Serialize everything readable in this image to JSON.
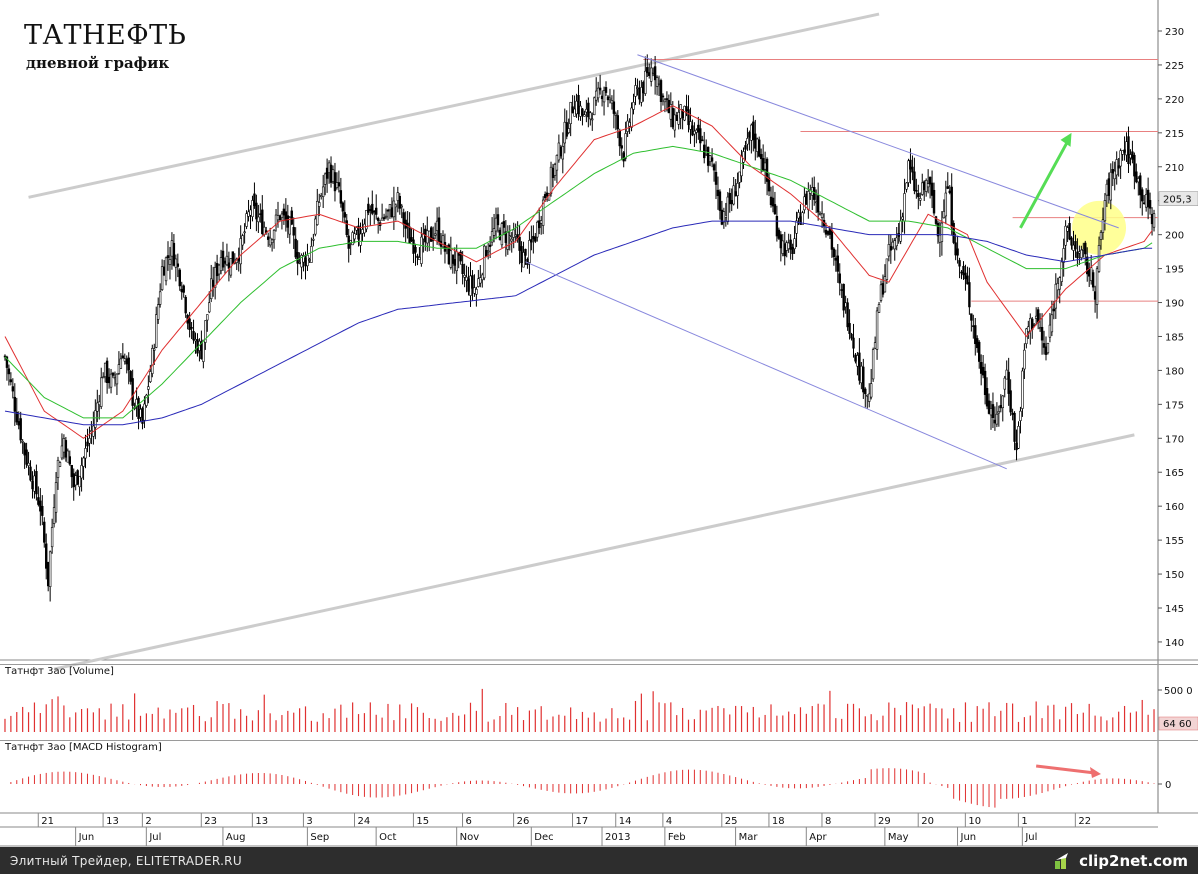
{
  "title": "ТАТНЕФТЬ",
  "subtitle": "дневной график",
  "footer": {
    "text": "Элитный Трейдер, ELITETRADER.RU",
    "logo_text": "clip2net.com"
  },
  "chart_data": [
    {
      "type": "candlestick",
      "name": "price",
      "yticks": [
        140,
        145,
        150,
        155,
        160,
        165,
        170,
        175,
        180,
        185,
        190,
        195,
        200,
        205,
        210,
        215,
        220,
        225,
        230
      ],
      "ylim": [
        136,
        233
      ],
      "last_price_label": "205,3",
      "last_price": 205.3,
      "close_keypoints": [
        [
          0,
          182
        ],
        [
          5,
          175
        ],
        [
          10,
          168
        ],
        [
          18,
          160
        ],
        [
          22,
          149
        ],
        [
          26,
          165
        ],
        [
          30,
          170
        ],
        [
          35,
          163
        ],
        [
          40,
          167
        ],
        [
          45,
          172
        ],
        [
          50,
          180
        ],
        [
          55,
          178
        ],
        [
          60,
          183
        ],
        [
          65,
          176
        ],
        [
          70,
          172
        ],
        [
          75,
          182
        ],
        [
          80,
          195
        ],
        [
          85,
          198
        ],
        [
          90,
          193
        ],
        [
          95,
          185
        ],
        [
          100,
          183
        ],
        [
          105,
          192
        ],
        [
          110,
          197
        ],
        [
          115,
          196
        ],
        [
          120,
          198
        ],
        [
          125,
          204
        ],
        [
          130,
          202
        ],
        [
          135,
          200
        ],
        [
          140,
          203
        ],
        [
          145,
          201
        ],
        [
          150,
          196
        ],
        [
          155,
          197
        ],
        [
          160,
          205
        ],
        [
          165,
          210
        ],
        [
          170,
          206
        ],
        [
          175,
          198
        ],
        [
          180,
          200
        ],
        [
          185,
          204
        ],
        [
          190,
          202
        ],
        [
          195,
          203
        ],
        [
          200,
          205
        ],
        [
          205,
          200
        ],
        [
          210,
          198
        ],
        [
          215,
          199
        ],
        [
          220,
          201
        ],
        [
          225,
          197
        ],
        [
          230,
          196
        ],
        [
          235,
          193
        ],
        [
          240,
          192
        ],
        [
          245,
          198
        ],
        [
          250,
          201
        ],
        [
          255,
          200
        ],
        [
          260,
          199
        ],
        [
          265,
          196
        ],
        [
          270,
          200
        ],
        [
          275,
          206
        ],
        [
          280,
          210
        ],
        [
          285,
          215
        ],
        [
          290,
          220
        ],
        [
          295,
          217
        ],
        [
          300,
          219
        ],
        [
          305,
          222
        ],
        [
          310,
          218
        ],
        [
          315,
          212
        ],
        [
          320,
          220
        ],
        [
          325,
          222
        ],
        [
          330,
          225
        ],
        [
          335,
          220
        ],
        [
          340,
          217
        ],
        [
          345,
          218
        ],
        [
          350,
          215
        ],
        [
          355,
          213
        ],
        [
          360,
          210
        ],
        [
          365,
          203
        ],
        [
          370,
          205
        ],
        [
          375,
          210
        ],
        [
          380,
          215
        ],
        [
          385,
          212
        ],
        [
          390,
          205
        ],
        [
          395,
          199
        ],
        [
          400,
          197
        ],
        [
          405,
          203
        ],
        [
          410,
          207
        ],
        [
          415,
          204
        ],
        [
          420,
          200
        ],
        [
          425,
          192
        ],
        [
          430,
          187
        ],
        [
          435,
          180
        ],
        [
          440,
          176
        ],
        [
          445,
          190
        ],
        [
          450,
          197
        ],
        [
          455,
          200
        ],
        [
          460,
          210
        ],
        [
          465,
          205
        ],
        [
          470,
          208
        ],
        [
          475,
          200
        ],
        [
          480,
          207
        ],
        [
          485,
          196
        ],
        [
          490,
          192
        ],
        [
          495,
          183
        ],
        [
          500,
          176
        ],
        [
          505,
          172
        ],
        [
          510,
          180
        ],
        [
          515,
          168
        ],
        [
          520,
          186
        ],
        [
          525,
          188
        ],
        [
          530,
          182
        ],
        [
          535,
          192
        ],
        [
          540,
          200
        ],
        [
          545,
          198
        ],
        [
          550,
          196
        ],
        [
          555,
          192
        ],
        [
          560,
          205
        ],
        [
          565,
          210
        ],
        [
          570,
          213
        ],
        [
          575,
          210
        ],
        [
          580,
          205
        ],
        [
          582,
          204
        ],
        [
          585,
          202
        ]
      ],
      "moving_averages": [
        {
          "name": "MA short",
          "color": "#e03030",
          "keypoints": [
            [
              0,
              185
            ],
            [
              20,
              174
            ],
            [
              40,
              170
            ],
            [
              60,
              174
            ],
            [
              80,
              183
            ],
            [
              100,
              190
            ],
            [
              120,
              197
            ],
            [
              140,
              202
            ],
            [
              160,
              203
            ],
            [
              180,
              201
            ],
            [
              200,
              202
            ],
            [
              220,
              199
            ],
            [
              240,
              196
            ],
            [
              260,
              199
            ],
            [
              280,
              207
            ],
            [
              300,
              214
            ],
            [
              320,
              216
            ],
            [
              340,
              219
            ],
            [
              360,
              216
            ],
            [
              380,
              210
            ],
            [
              400,
              206
            ],
            [
              420,
              201
            ],
            [
              440,
              194
            ],
            [
              450,
              193
            ],
            [
              470,
              203
            ],
            [
              490,
              200
            ],
            [
              500,
              193
            ],
            [
              520,
              185
            ],
            [
              540,
              192
            ],
            [
              560,
              197
            ],
            [
              580,
              199
            ],
            [
              585,
              201
            ]
          ]
        },
        {
          "name": "MA mid",
          "color": "#2fbf2f",
          "keypoints": [
            [
              0,
              182
            ],
            [
              20,
              176
            ],
            [
              40,
              173
            ],
            [
              60,
              173
            ],
            [
              80,
              178
            ],
            [
              100,
              184
            ],
            [
              120,
              190
            ],
            [
              140,
              195
            ],
            [
              160,
              198
            ],
            [
              180,
              199
            ],
            [
              200,
              199
            ],
            [
              220,
              198
            ],
            [
              240,
              198
            ],
            [
              260,
              201
            ],
            [
              280,
              205
            ],
            [
              300,
              209
            ],
            [
              320,
              212
            ],
            [
              340,
              213
            ],
            [
              360,
              212
            ],
            [
              380,
              210
            ],
            [
              400,
              208
            ],
            [
              420,
              205
            ],
            [
              440,
              202
            ],
            [
              460,
              202
            ],
            [
              480,
              201
            ],
            [
              500,
              198
            ],
            [
              520,
              195
            ],
            [
              540,
              195
            ],
            [
              560,
              197
            ],
            [
              580,
              198
            ],
            [
              585,
              199
            ]
          ]
        },
        {
          "name": "MA long",
          "color": "#2a2ab8",
          "keypoints": [
            [
              0,
              174
            ],
            [
              20,
              173
            ],
            [
              40,
              172
            ],
            [
              60,
              172
            ],
            [
              80,
              173
            ],
            [
              100,
              175
            ],
            [
              120,
              178
            ],
            [
              140,
              181
            ],
            [
              160,
              184
            ],
            [
              180,
              187
            ],
            [
              200,
              189
            ],
            [
              230,
              190
            ],
            [
              260,
              191
            ],
            [
              280,
              194
            ],
            [
              300,
              197
            ],
            [
              320,
              199
            ],
            [
              340,
              201
            ],
            [
              360,
              202
            ],
            [
              380,
              202
            ],
            [
              400,
              202
            ],
            [
              420,
              201
            ],
            [
              440,
              200
            ],
            [
              460,
              200
            ],
            [
              480,
              200
            ],
            [
              500,
              199
            ],
            [
              520,
              197
            ],
            [
              540,
              196
            ],
            [
              560,
              197
            ],
            [
              580,
              198
            ],
            [
              585,
              198
            ]
          ]
        }
      ],
      "annotations": {
        "upper_channel_line": {
          "from": [
            12,
            205.5
          ],
          "to": [
            445,
            232.5
          ],
          "color": "#cccccc"
        },
        "lower_channel_line": {
          "from": [
            25,
            136
          ],
          "to": [
            575,
            170.5
          ],
          "color": "#cccccc"
        },
        "downtrend_top_line": {
          "from": [
            322,
            226.5
          ],
          "to": [
            567,
            201
          ],
          "color": "#8888dd"
        },
        "downtrend_bottom_line": {
          "from": [
            265,
            196
          ],
          "to": [
            510,
            165.5
          ],
          "color": "#8888dd"
        },
        "horizontal_levels": [
          {
            "value": 225.8,
            "from": 325,
            "color": "#e88080"
          },
          {
            "value": 215.2,
            "from": 405,
            "color": "#e88080"
          },
          {
            "value": 202.5,
            "from": 513,
            "color": "#e88080"
          },
          {
            "value": 190.2,
            "from": 492,
            "color": "#e88080"
          }
        ],
        "green_arrow": {
          "from": [
            517,
            201
          ],
          "to": [
            543,
            215
          ],
          "color": "#55dd55"
        },
        "highlight_circle": {
          "center": [
            557,
            201
          ],
          "color": "#ffff88"
        }
      }
    },
    {
      "type": "bar",
      "name": "Татнфт 3ао [Volume]",
      "yticks_labels": [
        "500 0",
        "64 60"
      ],
      "color": "#e03030"
    },
    {
      "type": "bar",
      "name": "Татнфт 3ао [MACD Histogram]",
      "yticks": [
        0
      ],
      "color": "#e03030",
      "annotation_arrow_color": "#ee7070"
    }
  ],
  "x_axis": {
    "day_labels": [
      {
        "label": "21",
        "bar": 20
      },
      {
        "label": "13",
        "bar": 53
      },
      {
        "label": "2",
        "bar": 73
      },
      {
        "label": "23",
        "bar": 103
      },
      {
        "label": "13",
        "bar": 129
      },
      {
        "label": "3",
        "bar": 155
      },
      {
        "label": "24",
        "bar": 181
      },
      {
        "label": "15",
        "bar": 211
      },
      {
        "label": "6",
        "bar": 236
      },
      {
        "label": "26",
        "bar": 262
      },
      {
        "label": "17",
        "bar": 292
      },
      {
        "label": "14",
        "bar": 314
      },
      {
        "label": "4",
        "bar": 338
      },
      {
        "label": "25",
        "bar": 368
      },
      {
        "label": "18",
        "bar": 392
      },
      {
        "label": "8",
        "bar": 419
      },
      {
        "label": "29",
        "bar": 446
      },
      {
        "label": "20",
        "bar": 468
      },
      {
        "label": "10",
        "bar": 492
      },
      {
        "label": "1",
        "bar": 519
      },
      {
        "label": "22",
        "bar": 548
      }
    ],
    "month_labels": [
      {
        "label": "Jun",
        "bar": 38
      },
      {
        "label": "Jul",
        "bar": 74
      },
      {
        "label": "Aug",
        "bar": 113
      },
      {
        "label": "Sep",
        "bar": 156
      },
      {
        "label": "Oct",
        "bar": 191
      },
      {
        "label": "Nov",
        "bar": 232
      },
      {
        "label": "Dec",
        "bar": 270
      },
      {
        "label": "2013",
        "bar": 306
      },
      {
        "label": "Feb",
        "bar": 338
      },
      {
        "label": "Mar",
        "bar": 374
      },
      {
        "label": "Apr",
        "bar": 410
      },
      {
        "label": "May",
        "bar": 450
      },
      {
        "label": "Jun",
        "bar": 487
      },
      {
        "label": "Jul",
        "bar": 520
      }
    ]
  }
}
